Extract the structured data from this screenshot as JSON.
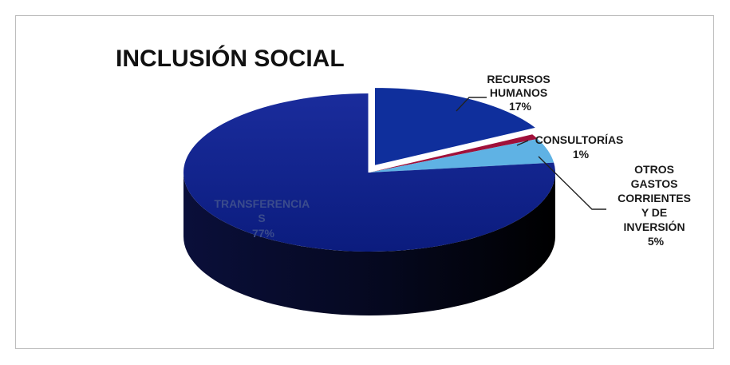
{
  "chart_data": {
    "type": "pie",
    "title": "INCLUSIÓN SOCIAL",
    "categories": [
      "RECURSOS HUMANOS",
      "CONSULTORÍAS",
      "OTROS GASTOS CORRIENTES Y DE INVERSIÓN",
      "TRANSFERENCIAS"
    ],
    "values": [
      17,
      1,
      5,
      77
    ],
    "unit": "%",
    "three_d": true,
    "exploded_slice": "RECURSOS HUMANOS",
    "colors": {
      "RECURSOS HUMANOS": "#0f2f9c",
      "CONSULTORÍAS": "#a0103a",
      "OTROS GASTOS CORRIENTES Y DE INVERSIÓN": "#5fb2e4",
      "TRANSFERENCIAS": "#0c1e86"
    },
    "labels": [
      {
        "lines": [
          "RECURSOS",
          "HUMANOS"
        ],
        "pct": "17%"
      },
      {
        "lines": [
          "CONSULTORÍAS"
        ],
        "pct": "1%"
      },
      {
        "lines": [
          "OTROS",
          "GASTOS",
          "CORRIENTES",
          "Y DE",
          "INVERSIÓN"
        ],
        "pct": "5%"
      },
      {
        "lines": [
          "TRANSFERENCIA",
          "S"
        ],
        "pct": "77%"
      }
    ]
  }
}
